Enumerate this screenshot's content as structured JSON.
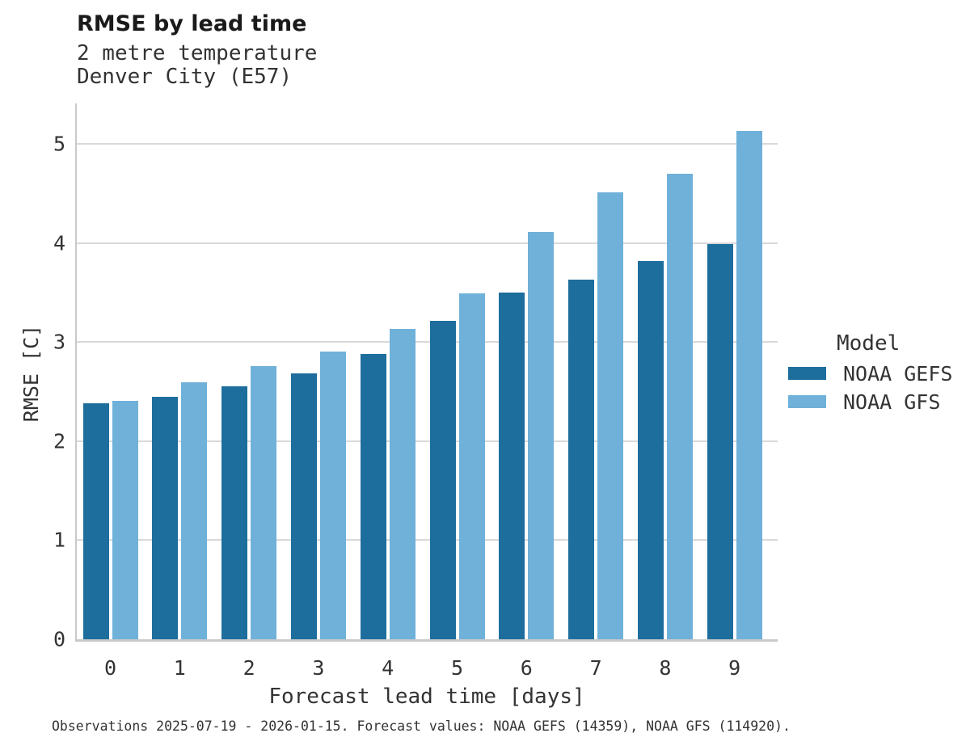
{
  "title": "RMSE by lead time",
  "subtitle_line1": "2 metre temperature",
  "subtitle_line2": "Denver City (E57)",
  "caption": "Observations 2025-07-19 - 2026-01-15. Forecast values: NOAA GEFS (14359), NOAA GFS (114920).",
  "legend": {
    "title": "Model",
    "entries": [
      {
        "label": "NOAA GEFS",
        "color": "#1d6e9d"
      },
      {
        "label": "NOAA GFS",
        "color": "#6fb1d9"
      }
    ]
  },
  "chart_data": {
    "type": "bar",
    "title": "RMSE by lead time",
    "subtitle": "2 metre temperature, Denver City (E57)",
    "xlabel": "Forecast lead time [days]",
    "ylabel": "RMSE [C]",
    "categories": [
      "0",
      "1",
      "2",
      "3",
      "4",
      "5",
      "6",
      "7",
      "8",
      "9"
    ],
    "series": [
      {
        "name": "NOAA GEFS",
        "color": "#1d6e9d",
        "values": [
          2.38,
          2.45,
          2.55,
          2.68,
          2.88,
          3.21,
          3.5,
          3.63,
          3.82,
          3.99
        ]
      },
      {
        "name": "NOAA GFS",
        "color": "#6fb1d9",
        "values": [
          2.41,
          2.59,
          2.76,
          2.9,
          3.13,
          3.49,
          4.11,
          4.51,
          4.7,
          5.13
        ]
      }
    ],
    "yticks": [
      0,
      1,
      2,
      3,
      4,
      5
    ],
    "ylim": [
      0,
      5.41
    ],
    "grid": true,
    "grid_color": "#d9d9d9",
    "legend_position": "right"
  }
}
